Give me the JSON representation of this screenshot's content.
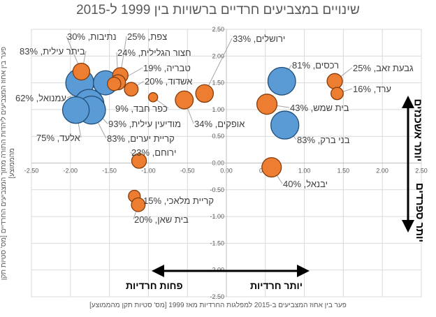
{
  "chart_data": {
    "type": "scatter",
    "title": "שינויים במצביעים חרדיים ברשויות בין 1999 ל-2015",
    "xlabel": "פער בין אחוז המצביעים ב-2015 למפלגות החרדיות מאז 1999 [מס' סטיות תקן מהממוצע]",
    "ylabel": "פער בין אחוז המצביעים ליהדות התורה מתוך המצביעים החרדיים [מס' סטיות תקן מהממוצע]",
    "xlim": [
      -2.5,
      2.5
    ],
    "ylim": [
      -2.5,
      2.5
    ],
    "xticks": [
      "-2.50",
      "-2.00",
      "-1.50",
      "-1.00",
      "-0.50",
      "0.00",
      "0.50",
      "1.00",
      "1.50",
      "2.00",
      "2.50"
    ],
    "yticks": [
      "2.50",
      "2.00",
      "1.50",
      "1.00",
      "0.50",
      "0.00",
      "-0.50",
      "-1.00",
      "-1.50",
      "-2.00",
      "-2.50"
    ],
    "grid": true,
    "bubble_size": "percent",
    "colors": {
      "blue": "#5b9bd5",
      "orange": "#ed7d31"
    },
    "points": [
      {
        "label": "ביתר עילית, 83%",
        "x": -1.88,
        "y": 1.5,
        "size": 83,
        "color": "#5b9bd5"
      },
      {
        "label": "עמנואל, 62%",
        "x": -1.55,
        "y": 1.5,
        "size": 62,
        "color": "#5b9bd5"
      },
      {
        "label": "מודיעין עילית, 93%",
        "x": -1.76,
        "y": 1.1,
        "size": 93,
        "color": "#5b9bd5"
      },
      {
        "label": "קריית יערים, 83%",
        "x": -1.73,
        "y": 0.99,
        "size": 83,
        "color": "#5b9bd5"
      },
      {
        "label": "אלעד, 75%",
        "x": -1.93,
        "y": 0.99,
        "size": 75,
        "color": "#5b9bd5"
      },
      {
        "label": "רכסים, 81%",
        "x": 0.71,
        "y": 1.53,
        "size": 81,
        "color": "#5b9bd5"
      },
      {
        "label": "בני ברק, 83%",
        "x": 0.75,
        "y": 0.71,
        "size": 83,
        "color": "#5b9bd5"
      },
      {
        "label": "נתיבות, 30%",
        "x": -1.86,
        "y": 1.71,
        "size": 30,
        "color": "#ed7d31"
      },
      {
        "label": "צפת, 25%",
        "x": -1.36,
        "y": 1.64,
        "size": 25,
        "color": "#ed7d31"
      },
      {
        "label": "חצור הגלילית, 24%",
        "x": -1.39,
        "y": 1.51,
        "size": 24,
        "color": "#ed7d31"
      },
      {
        "label": "טבריה, 19%",
        "x": -1.44,
        "y": 1.48,
        "size": 19,
        "color": "#ed7d31"
      },
      {
        "label": "אשדוד, 20%",
        "x": -1.22,
        "y": 1.38,
        "size": 20,
        "color": "#ed7d31"
      },
      {
        "label": "כפר חבד, 9%",
        "x": -0.94,
        "y": 1.23,
        "size": 9,
        "color": "#ed7d31"
      },
      {
        "label": "אופקים, 34%",
        "x": -0.54,
        "y": 1.18,
        "size": 34,
        "color": "#ed7d31"
      },
      {
        "label": "ירושלים, 33%",
        "x": -0.28,
        "y": 1.3,
        "size": 33,
        "color": "#ed7d31"
      },
      {
        "label": "ירוחם, 23%",
        "x": -1.12,
        "y": 0.04,
        "size": 23,
        "color": "#ed7d31"
      },
      {
        "label": "קריית מלאכי, 15%",
        "x": -1.18,
        "y": -0.62,
        "size": 15,
        "color": "#ed7d31"
      },
      {
        "label": "בית שאן, 20%",
        "x": -1.13,
        "y": -0.78,
        "size": 20,
        "color": "#ed7d31"
      },
      {
        "label": "בית שמש, 43%",
        "x": 0.52,
        "y": 1.1,
        "size": 43,
        "color": "#ed7d31"
      },
      {
        "label": "גבעת זאב, 25%",
        "x": 1.39,
        "y": 1.53,
        "size": 25,
        "color": "#ed7d31"
      },
      {
        "label": "ערד, 16%",
        "x": 1.42,
        "y": 1.3,
        "size": 16,
        "color": "#ed7d31"
      },
      {
        "label": "יבנאל, 40%",
        "x": 0.58,
        "y": -0.08,
        "size": 40,
        "color": "#ed7d31"
      }
    ],
    "annotations": {
      "up": "יותר אשכנזים",
      "down": "יותר ספרדים",
      "right": "יותר חרדיות",
      "left": "פחות חרדיות"
    }
  }
}
